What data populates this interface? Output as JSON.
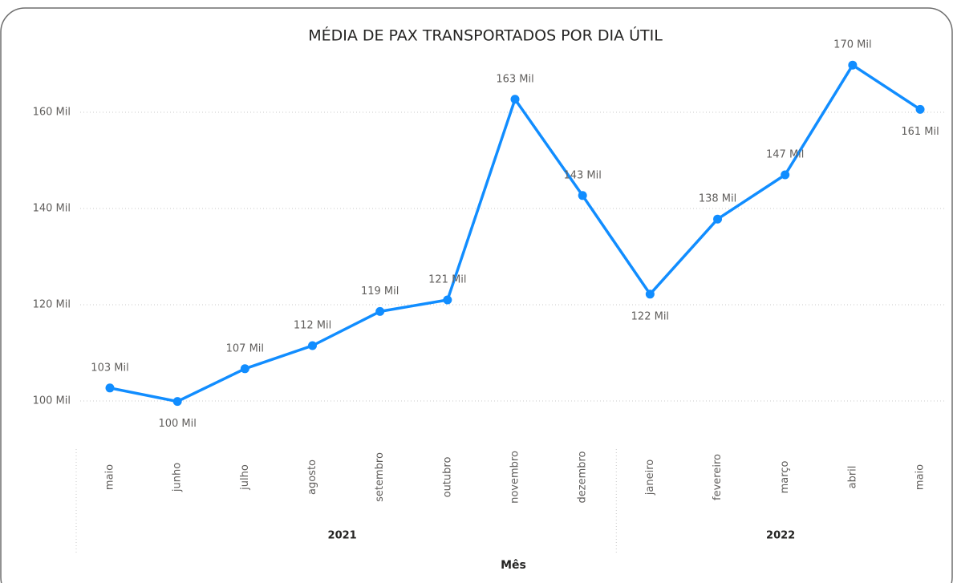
{
  "chart_data": {
    "type": "line",
    "title": "MÉDIA DE PAX TRANSPORTADOS POR DIA ÚTIL",
    "x_label": "Mês",
    "categories": [
      "maio",
      "junho",
      "julho",
      "agosto",
      "setembro",
      "outubro",
      "novembro",
      "dezembro",
      "janeiro",
      "fevereiro",
      "março",
      "abril",
      "maio"
    ],
    "groups": [
      {
        "label": "2021",
        "count": 8
      },
      {
        "label": "2022",
        "count": 5
      }
    ],
    "series": [
      {
        "name": "Média",
        "color": "#118DFF",
        "values": [
          102700,
          99900,
          106700,
          111500,
          118600,
          121000,
          162700,
          142700,
          122200,
          137800,
          147000,
          169800,
          160600
        ],
        "value_labels": [
          "103 Mil",
          "100 Mil",
          "107 Mil",
          "112 Mil",
          "119 Mil",
          "121 Mil",
          "163 Mil",
          "143 Mil",
          "122 Mil",
          "138 Mil",
          "147 Mil",
          "170 Mil",
          "161 Mil"
        ]
      }
    ],
    "ylim": [
      90000,
      172000
    ],
    "yticks": [
      {
        "value": 100000,
        "label": "100 Mil"
      },
      {
        "value": 120000,
        "label": "120 Mil"
      },
      {
        "value": 140000,
        "label": "140 Mil"
      },
      {
        "value": 160000,
        "label": "160 Mil"
      }
    ],
    "grid": true
  }
}
